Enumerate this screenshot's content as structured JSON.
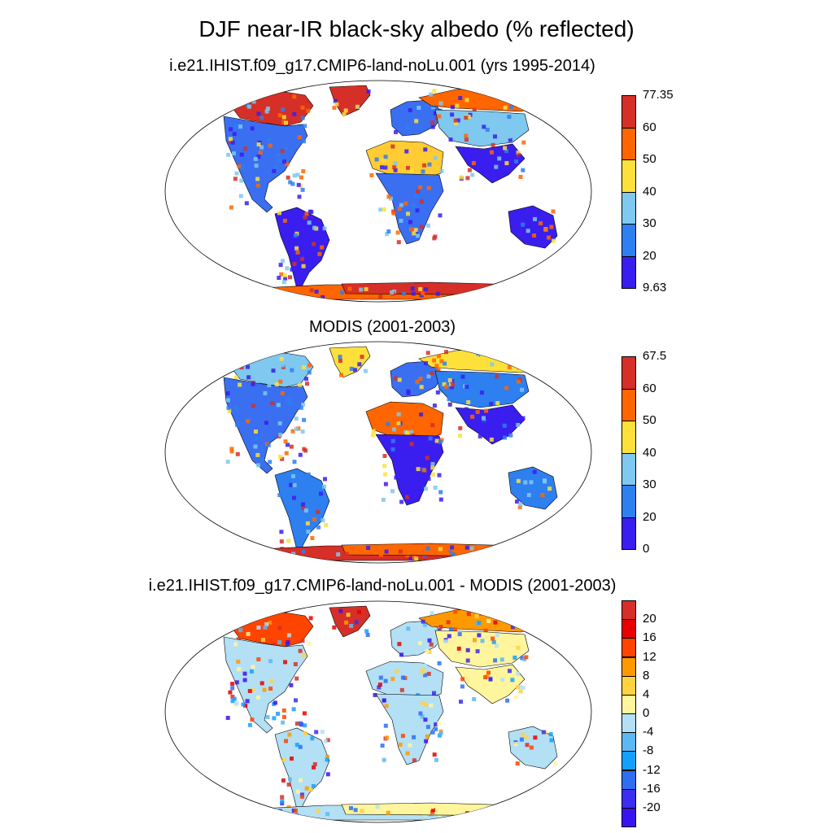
{
  "title": "DJF near-IR black-sky albedo (% reflected)",
  "panels": [
    {
      "id": "model",
      "subtitle": "i.e21.IHIST.f09_g17.CMIP6-land-noLu.001 (yrs 1995-2014)",
      "colorbar": {
        "labels": [
          "77.35",
          "60",
          "50",
          "40",
          "30",
          "20",
          "9.63"
        ],
        "colors": [
          "#d62f27",
          "#ff6600",
          "#fde03a",
          "#7fc8f0",
          "#2e7ff0",
          "#3a1ef0"
        ]
      },
      "regions": {
        "north_america": "#3a6ff2",
        "greenland": "#d62f27",
        "canada_arctic": "#d62f27",
        "south_america": "#3a1ef0",
        "europe": "#3a6ff2",
        "sahara": "#ffcc33",
        "africa_south": "#3a6ff2",
        "siberia": "#ff6600",
        "asia_central": "#7fc8f0",
        "asia_south": "#3a1ef0",
        "australia": "#3a1ef0",
        "antarctica": "#ff6600",
        "antarctica_edge": "#d62f27"
      }
    },
    {
      "id": "obs",
      "subtitle": "MODIS (2001-2003)",
      "colorbar": {
        "labels": [
          "67.5",
          "60",
          "50",
          "40",
          "30",
          "20",
          "0"
        ],
        "colors": [
          "#d62f27",
          "#ff6600",
          "#fde03a",
          "#7fc8f0",
          "#2e7ff0",
          "#3a1ef0"
        ]
      },
      "regions": {
        "north_america": "#3a6ff2",
        "greenland": "#fde03a",
        "canada_arctic": "#7fc8f0",
        "south_america": "#2e7ff0",
        "europe": "#3a6ff2",
        "sahara": "#ff6600",
        "africa_south": "#3a1ef0",
        "siberia": "#fde03a",
        "asia_central": "#2e7ff0",
        "asia_south": "#3a1ef0",
        "australia": "#2e7ff0",
        "antarctica": "#d62f27",
        "antarctica_edge": "#ff6600"
      }
    },
    {
      "id": "diff",
      "subtitle": "i.e21.IHIST.f09_g17.CMIP6-land-noLu.001 - MODIS (2001-2003)",
      "colorbar": {
        "labels": [
          "20",
          "16",
          "12",
          "8",
          "4",
          "0",
          "-4",
          "-8",
          "-12",
          "-16",
          "-20"
        ],
        "colors": [
          "#d62f27",
          "#e60000",
          "#ff4400",
          "#ff9900",
          "#ffd23f",
          "#fff59d",
          "#b3e0f5",
          "#5cb8f2",
          "#14a0ff",
          "#2e6ef0",
          "#3a2ef0",
          "#3a14f0"
        ]
      },
      "regions": {
        "north_america": "#b3e0f5",
        "greenland": "#d62f27",
        "canada_arctic": "#ff4400",
        "south_america": "#b3e0f5",
        "europe": "#b3e0f5",
        "sahara": "#b3e0f5",
        "africa_south": "#b3e0f5",
        "siberia": "#ff9900",
        "asia_central": "#fff59d",
        "asia_south": "#fff59d",
        "australia": "#b3e0f5",
        "antarctica": "#b3e0f5",
        "antarctica_edge": "#fff59d"
      }
    }
  ]
}
